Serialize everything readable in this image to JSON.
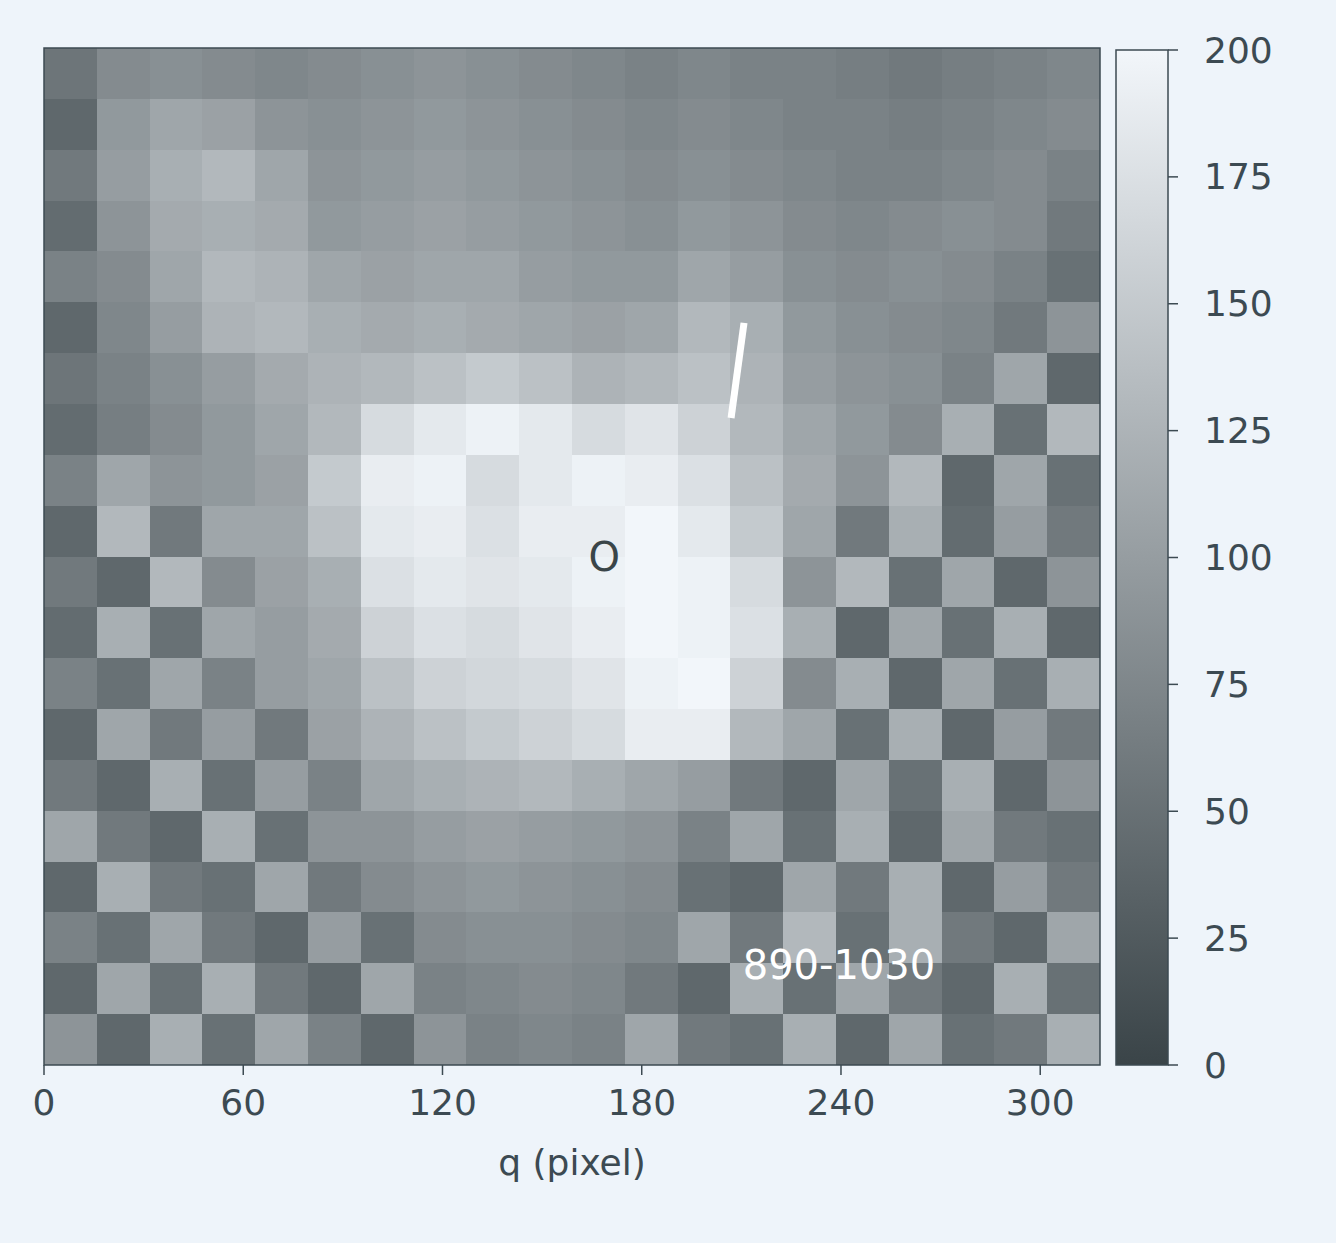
{
  "chart_data": {
    "type": "heatmap",
    "x_label": "q (pixel)",
    "xlim": [
      0,
      318
    ],
    "xticks": [
      0,
      60,
      120,
      180,
      240,
      300
    ],
    "ylim": [
      0,
      306
    ],
    "tick_labels": "x",
    "cells": [
      [
        55,
        80,
        85,
        80,
        75,
        80,
        85,
        90,
        85,
        80,
        75,
        70,
        75,
        70,
        70,
        65,
        60,
        65,
        70,
        75
      ],
      [
        40,
        95,
        110,
        105,
        90,
        85,
        90,
        95,
        90,
        85,
        80,
        75,
        80,
        75,
        70,
        70,
        65,
        70,
        75,
        80
      ],
      [
        60,
        100,
        120,
        130,
        110,
        90,
        95,
        100,
        95,
        90,
        85,
        80,
        85,
        80,
        75,
        70,
        70,
        75,
        80,
        70
      ],
      [
        45,
        90,
        115,
        120,
        115,
        95,
        100,
        105,
        100,
        95,
        90,
        85,
        95,
        90,
        80,
        75,
        80,
        85,
        80,
        60
      ],
      [
        70,
        80,
        110,
        130,
        125,
        110,
        105,
        110,
        110,
        100,
        95,
        95,
        110,
        100,
        85,
        80,
        85,
        80,
        70,
        50
      ],
      [
        40,
        75,
        100,
        125,
        130,
        120,
        115,
        120,
        115,
        110,
        105,
        110,
        130,
        120,
        95,
        85,
        80,
        75,
        60,
        90
      ],
      [
        55,
        70,
        85,
        100,
        115,
        125,
        130,
        140,
        150,
        140,
        125,
        130,
        140,
        125,
        100,
        90,
        85,
        70,
        110,
        40
      ],
      [
        45,
        65,
        80,
        95,
        110,
        130,
        170,
        185,
        195,
        185,
        170,
        180,
        160,
        130,
        110,
        95,
        80,
        120,
        50,
        130
      ],
      [
        70,
        110,
        90,
        95,
        105,
        150,
        190,
        195,
        170,
        185,
        195,
        190,
        175,
        140,
        115,
        90,
        130,
        40,
        110,
        50
      ],
      [
        40,
        130,
        60,
        110,
        110,
        140,
        185,
        190,
        175,
        190,
        190,
        200,
        185,
        150,
        110,
        60,
        120,
        45,
        100,
        60
      ],
      [
        60,
        40,
        130,
        80,
        105,
        120,
        175,
        185,
        180,
        185,
        195,
        200,
        195,
        170,
        90,
        130,
        50,
        110,
        40,
        90
      ],
      [
        45,
        120,
        50,
        110,
        100,
        115,
        160,
        175,
        170,
        180,
        190,
        200,
        195,
        175,
        120,
        40,
        110,
        50,
        120,
        40
      ],
      [
        70,
        50,
        110,
        70,
        100,
        110,
        140,
        160,
        165,
        170,
        180,
        195,
        200,
        160,
        80,
        120,
        40,
        110,
        50,
        120
      ],
      [
        40,
        110,
        60,
        100,
        60,
        105,
        125,
        140,
        150,
        160,
        170,
        190,
        190,
        130,
        110,
        50,
        120,
        40,
        100,
        60
      ],
      [
        60,
        40,
        120,
        50,
        100,
        70,
        110,
        120,
        125,
        130,
        120,
        110,
        100,
        60,
        40,
        110,
        50,
        120,
        40,
        90
      ],
      [
        110,
        60,
        40,
        120,
        50,
        90,
        90,
        100,
        105,
        100,
        95,
        90,
        70,
        110,
        50,
        120,
        40,
        110,
        60,
        50
      ],
      [
        40,
        120,
        60,
        50,
        110,
        60,
        80,
        90,
        95,
        90,
        85,
        80,
        50,
        40,
        110,
        60,
        120,
        40,
        100,
        60
      ],
      [
        70,
        50,
        110,
        60,
        40,
        100,
        50,
        80,
        85,
        85,
        80,
        75,
        110,
        60,
        130,
        50,
        120,
        60,
        40,
        110
      ],
      [
        40,
        110,
        50,
        120,
        60,
        40,
        110,
        70,
        75,
        80,
        75,
        60,
        40,
        120,
        50,
        110,
        60,
        40,
        120,
        50
      ],
      [
        90,
        40,
        120,
        50,
        110,
        70,
        40,
        90,
        70,
        75,
        70,
        110,
        60,
        50,
        120,
        40,
        110,
        50,
        60,
        120
      ]
    ],
    "colorbar": {
      "range": [
        0,
        200
      ],
      "ticks": [
        0,
        25,
        50,
        75,
        100,
        125,
        150,
        175,
        200
      ]
    },
    "annotations": [
      {
        "text": "O",
        "x": 168.7,
        "y": 153,
        "color": "#3a4548"
      },
      {
        "text": "890-1030",
        "x": 239.4,
        "y": 276,
        "color": "#ffffff"
      }
    ],
    "segment": {
      "x": [
        210.8,
        206.9
      ],
      "y": [
        82.7,
        111.3
      ],
      "color": "#ffffff"
    }
  }
}
